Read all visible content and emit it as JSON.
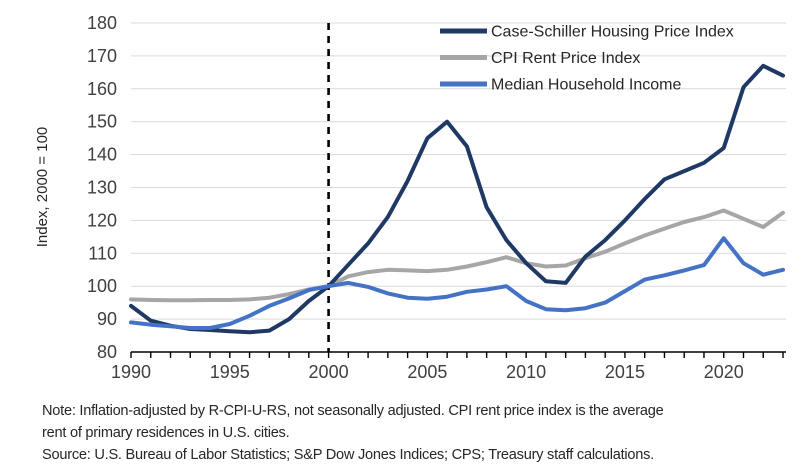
{
  "figure": {
    "notes": {
      "note_line1": "Note: Inflation-adjusted by R-CPI-U-RS, not seasonally adjusted. CPI rent price index is the average",
      "note_line2": "rent of primary residences in U.S. cities.",
      "source_line": "Source: U.S. Bureau of Labor Statistics; S&P Dow Jones Indices; CPS; Treasury staff calculations."
    }
  },
  "chart_data": {
    "type": "line",
    "title": "",
    "xlabel": "",
    "ylabel": "Index, 2000 = 100",
    "ylim": [
      80,
      180
    ],
    "y_ticks": [
      80,
      90,
      100,
      110,
      120,
      130,
      140,
      150,
      160,
      170,
      180
    ],
    "x_range": [
      1990,
      2023
    ],
    "x_tick_labels": [
      "1990",
      "1995",
      "2000",
      "2005",
      "2010",
      "2015",
      "2020"
    ],
    "grid": "horizontal",
    "legend_position": "top-right-inside",
    "annotations": [
      {
        "type": "vline-dashed",
        "x": 2000,
        "color": "#000000"
      }
    ],
    "x": [
      1990,
      1991,
      1992,
      1993,
      1994,
      1995,
      1996,
      1997,
      1998,
      1999,
      2000,
      2001,
      2002,
      2003,
      2004,
      2005,
      2006,
      2007,
      2008,
      2009,
      2010,
      2011,
      2012,
      2013,
      2014,
      2015,
      2016,
      2017,
      2018,
      2019,
      2020,
      2021,
      2022,
      2023
    ],
    "series": [
      {
        "name": "Case-Schiller Housing Price Index",
        "color": "#1F3864",
        "values": [
          94,
          89.5,
          88,
          87,
          86.7,
          86.3,
          86,
          86.5,
          90,
          95.5,
          100,
          106.5,
          113,
          121,
          132,
          145,
          150,
          142.5,
          124,
          114,
          107,
          101.5,
          101,
          109,
          114,
          120,
          126.5,
          132.5,
          135,
          137.5,
          142,
          160.5,
          167,
          164
        ]
      },
      {
        "name": "CPI Rent Price Index",
        "color": "#A6A6A6",
        "values": [
          96,
          95.8,
          95.7,
          95.7,
          95.8,
          95.8,
          96,
          96.5,
          97.6,
          99,
          100,
          103,
          104.3,
          105,
          104.8,
          104.6,
          105,
          106,
          107.3,
          108.8,
          107,
          106,
          106.3,
          108.5,
          110.5,
          113,
          115.4,
          117.5,
          119.5,
          121,
          123,
          120.5,
          118,
          122.3
        ]
      },
      {
        "name": "Median Household Income",
        "color": "#4472C4",
        "values": [
          89,
          88.3,
          87.8,
          87.3,
          87.3,
          88.5,
          91,
          94,
          96.3,
          98.8,
          100,
          101,
          99.8,
          97.8,
          96.5,
          96.2,
          96.8,
          98.3,
          99,
          100,
          95.5,
          93,
          92.7,
          93.3,
          95,
          98.5,
          102,
          103.3,
          104.8,
          106.4,
          114.6,
          107,
          103.5,
          105
        ]
      }
    ],
    "axis_colors": {
      "grid": "#D9D9D9",
      "axis_line": "#000000",
      "tick_label": "#404040"
    }
  }
}
